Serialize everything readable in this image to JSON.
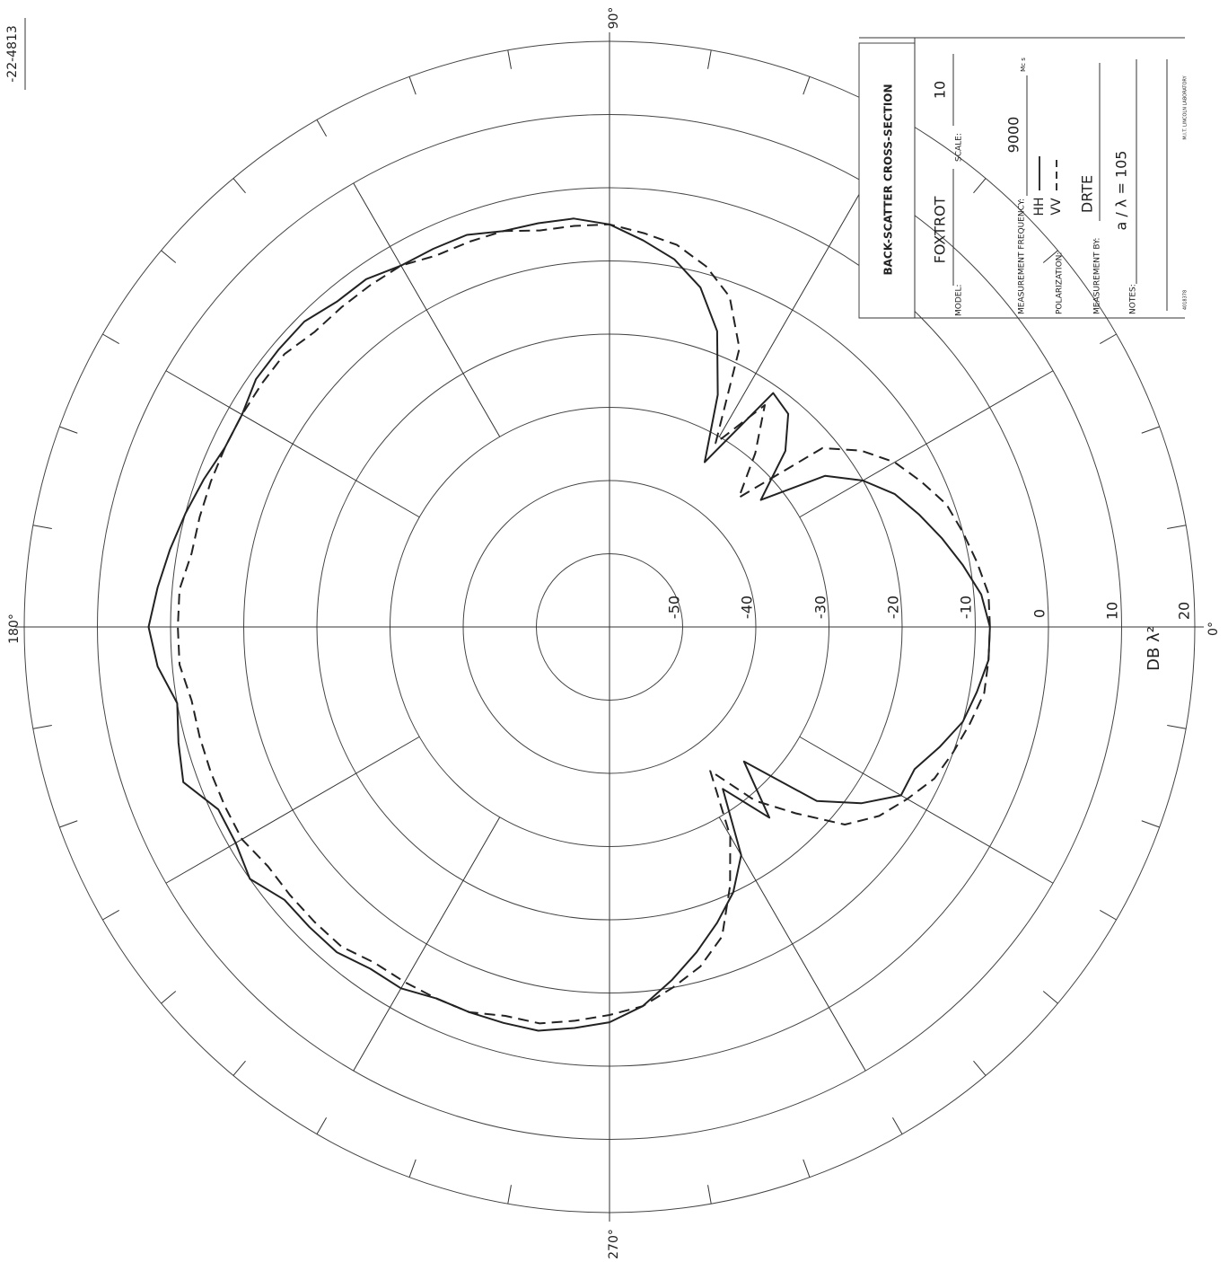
{
  "corner_id": "-22-4813",
  "chart_data": {
    "type": "polar",
    "angle_labels": [
      "0°",
      "90°",
      "180°",
      "270°"
    ],
    "radial_labels": [
      "-50",
      "-40",
      "-30",
      "-20",
      "-10",
      "0",
      "10",
      "20"
    ],
    "radial_unit_label": "DB λ²",
    "r_range": [
      -60,
      20
    ],
    "grid": true,
    "series": [
      {
        "name": "HH",
        "style": "solid",
        "angles": [
          0,
          5,
          10,
          15,
          20,
          25,
          30,
          35,
          40,
          45,
          50,
          55,
          60,
          65,
          70,
          75,
          80,
          85,
          90,
          95,
          100,
          105,
          110,
          115,
          120,
          125,
          130,
          135,
          140,
          145,
          150,
          155,
          160,
          165,
          170,
          175,
          180,
          185,
          190,
          195,
          200,
          205,
          210,
          215,
          220,
          225,
          230,
          235,
          240,
          245,
          250,
          255,
          260,
          265,
          270,
          275,
          280,
          285,
          290,
          295,
          300,
          305,
          310,
          315,
          320,
          325,
          330,
          335,
          340,
          345,
          350,
          355,
          360
        ],
        "values": [
          -8,
          -9,
          -11,
          -13,
          -15,
          -17,
          -20,
          -24,
          -33,
          -26,
          -22,
          -21,
          -34,
          -25,
          -17,
          -12,
          -9,
          -7,
          -5,
          -4,
          -4,
          -4,
          -3,
          -3,
          -3,
          -2,
          -2,
          -1,
          -1,
          -1,
          -2,
          -2,
          -1,
          0,
          1,
          2,
          3,
          2,
          0,
          1,
          2,
          -1,
          -1,
          0,
          -2,
          -2,
          -2,
          -3,
          -3,
          -4,
          -4,
          -4,
          -4,
          -5,
          -6,
          -8,
          -11,
          -14,
          -17,
          -20,
          -24,
          -33,
          -26,
          -34,
          -23,
          -18,
          -14,
          -14,
          -12,
          -10,
          -9,
          -8,
          -8
        ]
      },
      {
        "name": "VV",
        "style": "dashed",
        "angles": [
          0,
          5,
          10,
          15,
          20,
          25,
          30,
          35,
          40,
          45,
          50,
          55,
          60,
          65,
          70,
          75,
          80,
          85,
          90,
          95,
          100,
          105,
          110,
          115,
          120,
          125,
          130,
          135,
          140,
          145,
          150,
          155,
          160,
          165,
          170,
          175,
          180,
          185,
          190,
          195,
          200,
          205,
          210,
          215,
          220,
          225,
          230,
          235,
          240,
          245,
          250,
          255,
          260,
          265,
          270,
          275,
          280,
          285,
          290,
          295,
          300,
          305,
          310,
          315,
          320,
          325,
          330,
          335,
          340,
          345,
          350,
          355,
          360
        ],
        "values": [
          -8,
          -8,
          -9,
          -10,
          -11,
          -13,
          -15,
          -18,
          -22,
          -35,
          -29,
          -23,
          -31,
          -18,
          -12,
          -9,
          -7,
          -6,
          -5,
          -5,
          -5,
          -4,
          -4,
          -4,
          -3,
          -3,
          -3,
          -3,
          -2,
          -2,
          -2,
          -2,
          -2,
          -2,
          -2,
          -1,
          -1,
          -1,
          -2,
          -2,
          -2,
          -2,
          -2,
          -3,
          -3,
          -3,
          -3,
          -4,
          -4,
          -4,
          -4,
          -5,
          -5,
          -6,
          -7,
          -8,
          -10,
          -12,
          -15,
          -21,
          -27,
          -36,
          -29,
          -24,
          -18,
          -15,
          -13,
          -11,
          -10,
          -9,
          -8,
          -8,
          -8
        ]
      }
    ]
  },
  "info_block": {
    "title": "BACK-SCATTER CROSS-SECTION",
    "model_label": "MODEL:",
    "model_value": "FOXTROT",
    "scale_label": "SCALE:",
    "scale_value": "10",
    "frequency_label": "MEASUREMENT FREQUENCY:",
    "frequency_value": "9000",
    "frequency_unit": "Mc s",
    "polarization_label": "POLARIZATION:",
    "pol_hh": "HH",
    "pol_vv": "VV",
    "measured_by_label": "MEASUREMENT BY:",
    "measured_by_value": "DRTE",
    "notes_label": "NOTES:",
    "notes_value": "a / λ = 105",
    "footer_left": "4018378",
    "footer_right": "M.I.T. LINCOLN LABORATORY"
  }
}
